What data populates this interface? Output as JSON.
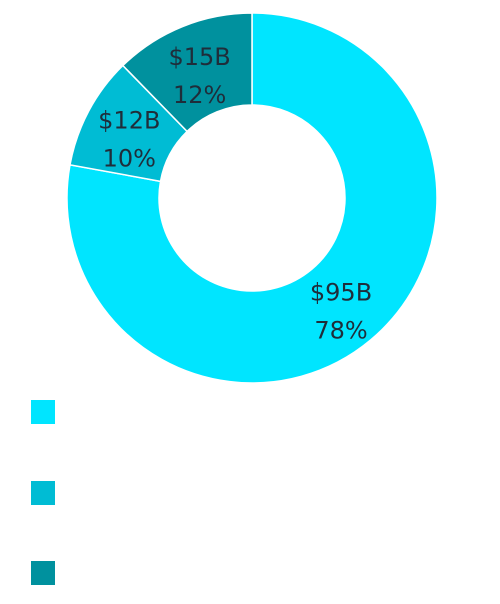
{
  "chart_data": {
    "type": "pie",
    "style": "donut",
    "categories": [
      "",
      "",
      ""
    ],
    "values": [
      95,
      12,
      15
    ],
    "value_labels": [
      "$95B",
      "$12B",
      "$15B"
    ],
    "percent_labels": [
      "78%",
      "10%",
      "12%"
    ],
    "colors": [
      "#00e5ff",
      "#00bcd4",
      "#00919e"
    ],
    "legend_position": "bottom-left",
    "title": ""
  }
}
